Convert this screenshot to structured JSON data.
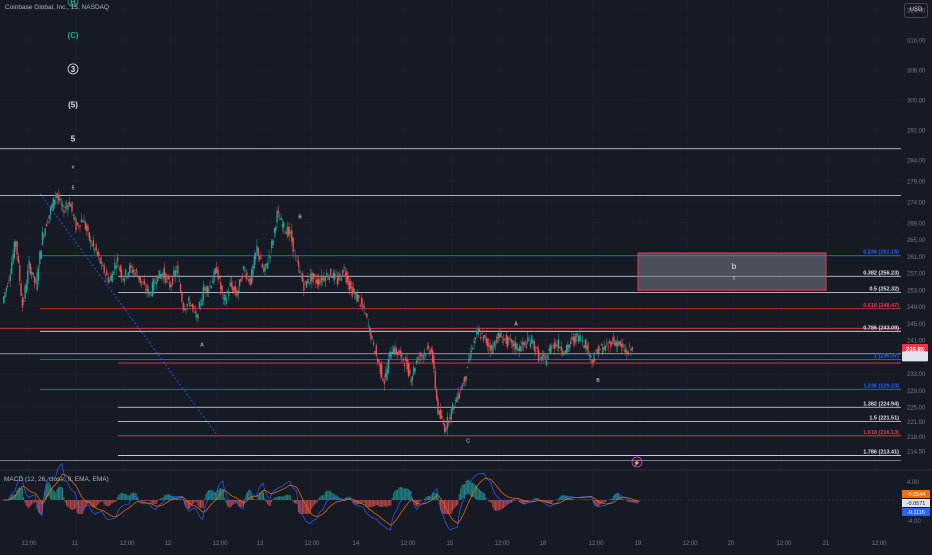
{
  "header": {
    "title": "Coinbase Global, Inc., 15, NASDAQ",
    "currency": "USD"
  },
  "colors": {
    "bg": "#161a25",
    "grid": "#1f2330",
    "white": "#e0e3eb",
    "blue": "#2962ff",
    "red": "#f23645",
    "teal": "#26a69a",
    "bear": "#ef5350",
    "cyan": "#22ab94",
    "axis": "#787b86"
  },
  "price_axis": {
    "range": [
      213.5,
      328
    ],
    "labels": [
      "324.00",
      "316.00",
      "308.00",
      "300.00",
      "292.00",
      "284.00",
      "279.00",
      "274.00",
      "269.00",
      "265.00",
      "261.00",
      "257.00",
      "253.00",
      "249.00",
      "245.00",
      "241.00",
      "237.00",
      "233.00",
      "229.00",
      "225.00",
      "221.50",
      "218.00",
      "214.50"
    ],
    "tags": [
      {
        "text": "238.85",
        "price": 238.85,
        "color": "#f23645"
      },
      {
        "text": "",
        "price": 237.1,
        "color": "#e0e3eb"
      }
    ]
  },
  "time_axis": {
    "labels": [
      "12:00",
      "11",
      "12:00",
      "12",
      "12:00",
      "13",
      "12:00",
      "14",
      "12:00",
      "15",
      "12:00",
      "18",
      "12:00",
      "19",
      "12:00",
      "20",
      "12:00",
      "21",
      "12:00"
    ]
  },
  "fib_levels": [
    {
      "ratio": "0.236",
      "label": "0.236 (261.15)",
      "price": 261.15,
      "color": "#2962ff"
    },
    {
      "ratio": "0.382",
      "label": "0.382 (256.23)",
      "price": 256.23,
      "color": "#e0e3eb"
    },
    {
      "ratio": "0.5",
      "label": "0.5 (252.32)",
      "price": 252.32,
      "color": "#e0e3eb"
    },
    {
      "ratio": "0.618",
      "label": "0.618 (248.47)",
      "price": 248.47,
      "color": "#f23645"
    },
    {
      "ratio": "0.786",
      "label": "0.786 (243.09)",
      "price": 243.09,
      "color": "#e0e3eb"
    },
    {
      "ratio": "1",
      "label": "1 (236.37)",
      "price": 236.37,
      "color": "#2962ff"
    },
    {
      "ratio": "1.236",
      "label": "1.236 (229.23)",
      "price": 229.23,
      "color": "#2962ff"
    },
    {
      "ratio": "1.382",
      "label": "1.382 (224.94)",
      "price": 224.94,
      "color": "#e0e3eb"
    },
    {
      "ratio": "1.5",
      "label": "1.5 (221.51)",
      "price": 221.51,
      "color": "#e0e3eb"
    },
    {
      "ratio": "1.618",
      "label": "1.618 (218.13)",
      "price": 218.13,
      "color": "#f23645"
    },
    {
      "ratio": "1.786",
      "label": "1.786 (213.41)",
      "price": 213.41,
      "color": "#e0e3eb"
    }
  ],
  "wave_labels": [
    {
      "text": "B",
      "circled": true,
      "color": "#22ab94",
      "price": 325.5
    },
    {
      "text": "(C)",
      "circled": false,
      "color": "#22ab94",
      "price": 316.5
    },
    {
      "text": "3",
      "circled": true,
      "color": "#e0e3eb",
      "price": 307.5
    },
    {
      "text": "(5)",
      "circled": false,
      "color": "#e0e3eb",
      "price": 298
    },
    {
      "text": "5",
      "circled": false,
      "color": "#e0e3eb",
      "price": 289
    },
    {
      "text": "v",
      "circled": false,
      "color": "#e0e3eb",
      "price": 282
    },
    {
      "text": "5",
      "circled": false,
      "color": "#e0e3eb",
      "price": 277
    },
    {
      "text": "B",
      "circled": false,
      "color": "#e0e3eb",
      "price": 270
    },
    {
      "text": "A",
      "circled": false,
      "color": "#e0e3eb",
      "price": 239.5
    },
    {
      "text": "A",
      "circled": false,
      "color": "#e0e3eb",
      "price": 244.5
    },
    {
      "text": "B",
      "circled": false,
      "color": "#e0e3eb",
      "price": 231
    },
    {
      "text": "C",
      "circled": false,
      "color": "#e0e3eb",
      "price": 216.5
    },
    {
      "text": "b",
      "circled": false,
      "color": "#e0e3eb",
      "price": 258
    },
    {
      "text": "c",
      "circled": false,
      "color": "#e0e3eb",
      "price": 255.5
    }
  ],
  "target_box": {
    "top": 261.8,
    "bottom": 252.9,
    "color": "#f23645"
  },
  "macd": {
    "label": "MACD (12, 26, close, 9, EMA, EMA)",
    "axis_labels": [
      "4.00",
      "-4.00"
    ],
    "tags": [
      {
        "text": "-0.0544",
        "color": "#ff6d00"
      },
      {
        "text": "-0.0571",
        "color": "#e0e3eb"
      },
      {
        "text": "-0.1115",
        "color": "#2962ff"
      }
    ]
  },
  "chart_data": {
    "type": "candlestick",
    "title": "Coinbase Global, Inc., 15, NASDAQ",
    "xlabel": "",
    "ylabel": "",
    "ylim": [
      213.5,
      328
    ],
    "price_path": [
      250,
      256,
      265,
      249,
      259,
      254,
      266,
      271,
      276,
      272,
      274,
      268,
      270,
      265,
      262,
      258,
      255,
      260,
      256,
      258,
      257,
      254,
      252,
      256,
      257,
      254,
      258,
      249,
      250,
      246,
      253,
      254,
      258,
      250,
      254,
      252,
      258,
      255,
      263,
      257,
      262,
      271,
      268,
      266,
      259,
      254,
      256,
      255,
      256,
      257,
      255,
      258,
      253,
      251,
      248,
      242,
      236,
      231,
      239,
      238,
      236,
      232,
      237,
      238,
      239,
      224,
      220,
      224,
      228,
      232,
      239,
      243,
      241,
      239,
      242,
      241,
      240,
      239,
      240,
      241,
      237,
      236,
      240,
      240,
      238,
      241,
      242,
      240,
      236,
      239,
      239,
      241,
      240,
      238,
      239
    ],
    "grid": true
  }
}
